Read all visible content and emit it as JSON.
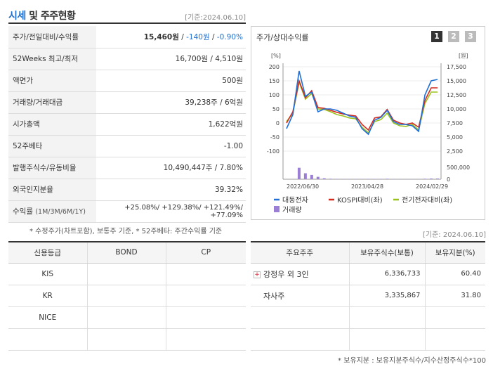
{
  "header": {
    "title_highlight": "시세",
    "title_rest": " 및 주주현황",
    "basis": "[기준:2024.06.10]"
  },
  "quote_rows": [
    {
      "label": "주가/전일대비/수익률",
      "price": "15,460원",
      "sep1": " / ",
      "change": "-140원",
      "sep2": " / ",
      "rate": "-0.90%"
    },
    {
      "label": "52Weeks 최고/최저",
      "value": "16,700원 / 4,510원"
    },
    {
      "label": "액면가",
      "value": "500원"
    },
    {
      "label": "거래량/거래대금",
      "value": "39,238주 / 6억원"
    },
    {
      "label": "시가총액",
      "value": "1,622억원"
    },
    {
      "label": "52주베타",
      "value": "-1.00"
    },
    {
      "label": "발행주식수/유동비율",
      "value": "10,490,447주 / 7.80%"
    },
    {
      "label": "외국인지분율",
      "value": "39.32%"
    }
  ],
  "return_row": {
    "label": "수익률",
    "periods": "(1M/3M/6M/1Y)",
    "values": "+25.08%/ +129.38%/ +121.49%/ +77.09%"
  },
  "note1": "* 수정주가(차트포함), 보통주 기준, * 52주베타: 주간수익률 기준",
  "chart_panel": {
    "title": "주가/상대수익률",
    "pages": [
      "1",
      "2",
      "3"
    ]
  },
  "chart_data": {
    "type": "line",
    "x_ticks": [
      "2022/06/30",
      "2023/04/28",
      "2024/02/29"
    ],
    "left_axis": {
      "unit": "[%]",
      "ticks": [
        200,
        150,
        100,
        50,
        0,
        -50,
        -100
      ],
      "ylim": [
        -100,
        200
      ]
    },
    "right_axis": {
      "unit": "[원]",
      "ticks": [
        "17,500",
        "15,000",
        "12,500",
        "10,000",
        "7,500",
        "5,000",
        "2,500"
      ],
      "ylim": [
        2500,
        17500
      ]
    },
    "volume_axis": {
      "ticks": [
        "500,000",
        "0"
      ],
      "ylim": [
        0,
        500000
      ]
    },
    "series": [
      {
        "name": "대동전자",
        "color": "#1f6fd6",
        "values": [
          -20,
          30,
          185,
          95,
          110,
          40,
          50,
          50,
          45,
          35,
          25,
          20,
          -20,
          -40,
          10,
          20,
          45,
          5,
          -5,
          -5,
          -10,
          -30,
          100,
          150,
          155
        ]
      },
      {
        "name": "KOSPI대비(좌)",
        "color": "#d42a1e",
        "values": [
          0,
          40,
          150,
          90,
          115,
          55,
          52,
          45,
          38,
          32,
          28,
          25,
          -5,
          -25,
          18,
          22,
          48,
          10,
          0,
          -5,
          0,
          -15,
          80,
          125,
          125
        ]
      },
      {
        "name": "전기전자대비(좌)",
        "color": "#9ac21d",
        "values": [
          5,
          35,
          145,
          85,
          105,
          50,
          48,
          40,
          30,
          25,
          18,
          15,
          -15,
          -35,
          5,
          12,
          35,
          0,
          -10,
          -12,
          -5,
          -25,
          70,
          110,
          110
        ]
      }
    ],
    "volume": {
      "name": "거래량",
      "color": "#9b7fd4",
      "values": [
        0,
        0,
        480000,
        250000,
        180000,
        100000,
        40000,
        20000,
        15000,
        10000,
        10000,
        8000,
        8000,
        15000,
        12000,
        15000,
        20000,
        8000,
        5000,
        5000,
        5000,
        5000,
        20000,
        30000,
        30000
      ]
    }
  },
  "basis2": "[기준: 2024.06.10]",
  "credit": {
    "headers": [
      "신용등급",
      "BOND",
      "CP"
    ],
    "rows": [
      [
        "KIS",
        "",
        ""
      ],
      [
        "KR",
        "",
        ""
      ],
      [
        "NICE",
        "",
        ""
      ],
      [
        "",
        "",
        ""
      ]
    ]
  },
  "holders": {
    "headers": [
      "주요주주",
      "보유주식수(보통)",
      "보유지분(%)"
    ],
    "rows": [
      {
        "name": "강정우 외 3인",
        "shares": "6,336,733",
        "pct": "60.40",
        "expandable": true
      },
      {
        "name": "자사주",
        "shares": "3,335,867",
        "pct": "31.80",
        "expandable": false
      },
      {
        "name": "",
        "shares": "",
        "pct": ""
      },
      {
        "name": "",
        "shares": "",
        "pct": ""
      }
    ]
  },
  "note2": "* 보유지분 : 보유지분주식수/지수산정주식수*100"
}
